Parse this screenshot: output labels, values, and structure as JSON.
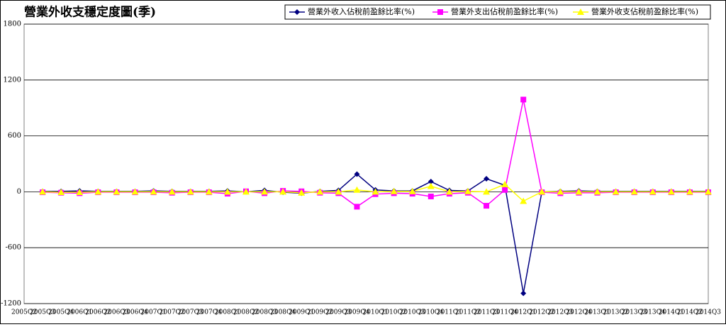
{
  "chart_data": {
    "type": "line",
    "title": "營業外收支穩定度圖(季)",
    "categories": [
      "2005Q2",
      "2005Q3",
      "2005Q4",
      "2006Q1",
      "2006Q2",
      "2006Q3",
      "2006Q4",
      "2007Q1",
      "2007Q2",
      "2007Q3",
      "2007Q4",
      "2008Q1",
      "2008Q2",
      "2008Q3",
      "2008Q4",
      "2009Q1",
      "2009Q2",
      "2009Q3",
      "2009Q4",
      "2010Q1",
      "2010Q2",
      "2010Q3",
      "2010Q4",
      "2011Q1",
      "2011Q2",
      "2011Q3",
      "2011Q4",
      "2012Q1",
      "2012Q2",
      "2012Q3",
      "2012Q4",
      "2013Q1",
      "2013Q2",
      "2013Q3",
      "2013Q4",
      "2014Q1",
      "2014Q2",
      "2014Q3"
    ],
    "series": [
      {
        "name": "營業外收入佔稅前盈餘比率(%)",
        "color": "#000080",
        "marker": "diamond",
        "values": [
          null,
          5,
          5,
          10,
          5,
          5,
          5,
          10,
          5,
          5,
          5,
          10,
          0,
          15,
          -5,
          -15,
          5,
          15,
          190,
          20,
          10,
          10,
          110,
          15,
          10,
          140,
          70,
          -1090,
          0,
          5,
          10,
          5,
          5,
          5,
          5,
          5,
          5,
          5
        ]
      },
      {
        "name": "營業外支出佔稅前盈餘比率(%)",
        "color": "#ff00ff",
        "marker": "square",
        "values": [
          null,
          -5,
          -10,
          -15,
          -5,
          -5,
          -5,
          -5,
          -10,
          -5,
          -5,
          -20,
          5,
          -15,
          10,
          5,
          -10,
          -15,
          -160,
          -25,
          -15,
          -20,
          -50,
          -20,
          -10,
          -150,
          20,
          990,
          -5,
          -15,
          -10,
          -10,
          -5,
          -5,
          -5,
          -5,
          -5,
          -5
        ]
      },
      {
        "name": "營業外收支佔稅前盈餘比率(%)",
        "color": "#ffff00",
        "marker": "triangle",
        "values": [
          null,
          0,
          -5,
          -5,
          0,
          0,
          0,
          0,
          0,
          0,
          0,
          0,
          0,
          0,
          0,
          -10,
          0,
          0,
          20,
          0,
          5,
          5,
          60,
          0,
          5,
          0,
          80,
          -100,
          0,
          0,
          0,
          0,
          0,
          0,
          0,
          0,
          0,
          0
        ]
      }
    ],
    "ylim": [
      -1200,
      1800
    ],
    "yticks": [
      -1200,
      -600,
      0,
      600,
      1200,
      1800
    ],
    "grid": true
  }
}
